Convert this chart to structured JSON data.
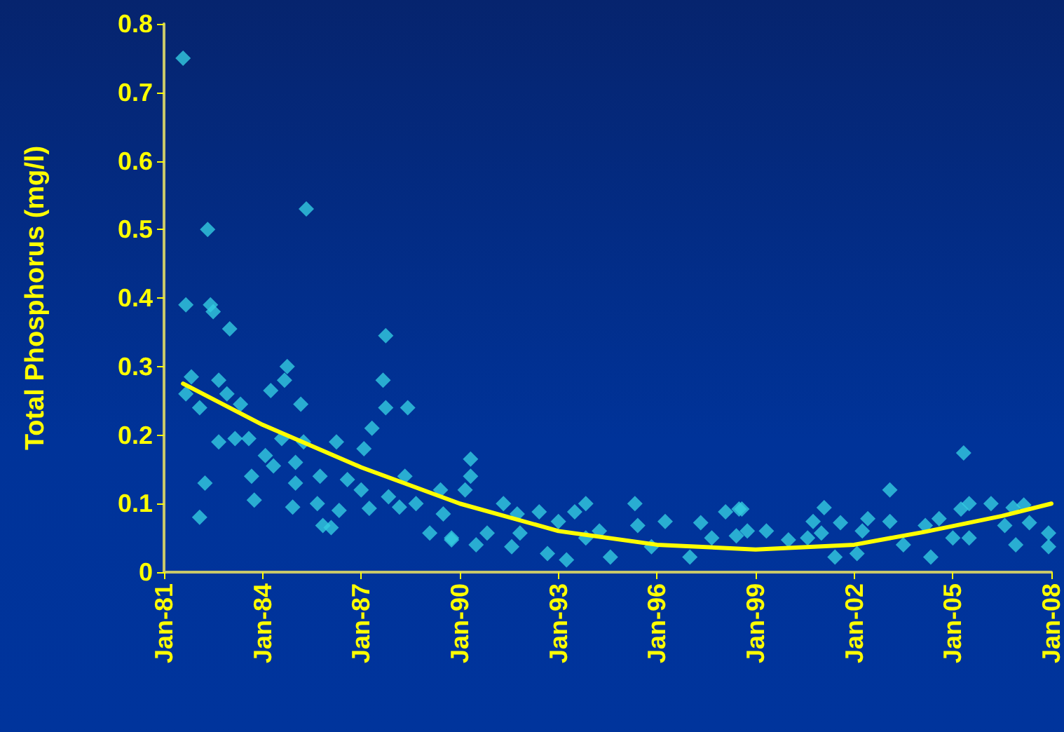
{
  "chart_data": {
    "type": "scatter",
    "ylabel": "Total Phosphorus (mg/l)",
    "grid": false,
    "xlim": [
      "1981-01",
      "2008-01"
    ],
    "xticks": [
      {
        "value": "1981-01",
        "label": "Jan-81"
      },
      {
        "value": "1984-01",
        "label": "Jan-84"
      },
      {
        "value": "1987-01",
        "label": "Jan-87"
      },
      {
        "value": "1990-01",
        "label": "Jan-90"
      },
      {
        "value": "1993-01",
        "label": "Jan-93"
      },
      {
        "value": "1996-01",
        "label": "Jan-96"
      },
      {
        "value": "1999-01",
        "label": "Jan-99"
      },
      {
        "value": "2002-01",
        "label": "Jan-02"
      },
      {
        "value": "2005-01",
        "label": "Jan-05"
      },
      {
        "value": "2008-01",
        "label": "Jan-08"
      }
    ],
    "ylim": [
      0,
      0.8
    ],
    "yticks": [
      0,
      0.1,
      0.2,
      0.3,
      0.4,
      0.5,
      0.6,
      0.7,
      0.8
    ],
    "series": [
      {
        "color": "#33cce0",
        "marker": "diamond",
        "x": [
          "1981-08",
          "1981-09",
          "1981-09",
          "1981-11",
          "1982-02",
          "1982-02",
          "1982-04",
          "1982-05",
          "1982-06",
          "1982-07",
          "1982-09",
          "1982-09",
          "1982-12",
          "1983-01",
          "1983-03",
          "1983-05",
          "1983-08",
          "1983-09",
          "1983-10",
          "1984-02",
          "1984-04",
          "1984-05",
          "1984-08",
          "1984-09",
          "1984-10",
          "1984-12",
          "1985-01",
          "1985-01",
          "1985-03",
          "1985-04",
          "1985-05",
          "1985-09",
          "1985-10",
          "1985-11",
          "1986-02",
          "1986-04",
          "1986-05",
          "1986-08",
          "1987-01",
          "1987-02",
          "1987-04",
          "1987-05",
          "1987-09",
          "1987-10",
          "1987-10",
          "1987-11",
          "1988-03",
          "1988-05",
          "1988-06",
          "1988-09",
          "1989-02",
          "1989-06",
          "1989-07",
          "1989-10",
          "1989-10",
          "1990-03",
          "1990-05",
          "1990-05",
          "1990-07",
          "1990-11",
          "1991-05",
          "1991-08",
          "1991-10",
          "1991-11",
          "1992-06",
          "1992-09",
          "1993-01",
          "1993-04",
          "1993-07",
          "1993-11",
          "1993-11",
          "1994-04",
          "1994-08",
          "1995-05",
          "1995-06",
          "1995-11",
          "1996-04",
          "1997-01",
          "1997-05",
          "1997-09",
          "1998-02",
          "1998-06",
          "1998-07",
          "1998-08",
          "1998-10",
          "1999-05",
          "2000-01",
          "2000-08",
          "2000-10",
          "2001-01",
          "2001-02",
          "2001-06",
          "2001-08",
          "2002-02",
          "2002-04",
          "2002-06",
          "2003-02",
          "2003-02",
          "2003-07",
          "2004-03",
          "2004-05",
          "2004-08",
          "2005-01",
          "2005-04",
          "2005-05",
          "2005-07",
          "2005-07",
          "2006-03",
          "2006-08",
          "2006-11",
          "2006-12",
          "2007-03",
          "2007-05",
          "2007-12",
          "2007-12"
        ],
        "values": [
          0.75,
          0.26,
          0.39,
          0.285,
          0.24,
          0.08,
          0.13,
          0.5,
          0.39,
          0.38,
          0.28,
          0.19,
          0.26,
          0.355,
          0.195,
          0.245,
          0.195,
          0.14,
          0.105,
          0.17,
          0.265,
          0.155,
          0.195,
          0.28,
          0.3,
          0.095,
          0.13,
          0.16,
          0.245,
          0.19,
          0.53,
          0.1,
          0.14,
          0.068,
          0.065,
          0.19,
          0.09,
          0.135,
          0.12,
          0.18,
          0.093,
          0.21,
          0.28,
          0.345,
          0.24,
          0.11,
          0.095,
          0.14,
          0.24,
          0.1,
          0.057,
          0.12,
          0.085,
          0.047,
          0.05,
          0.12,
          0.165,
          0.14,
          0.04,
          0.057,
          0.1,
          0.037,
          0.085,
          0.057,
          0.088,
          0.027,
          0.074,
          0.018,
          0.088,
          0.1,
          0.05,
          0.06,
          0.022,
          0.1,
          0.068,
          0.037,
          0.074,
          0.022,
          0.072,
          0.05,
          0.088,
          0.053,
          0.092,
          0.092,
          0.06,
          0.06,
          0.047,
          0.05,
          0.074,
          0.057,
          0.094,
          0.022,
          0.072,
          0.027,
          0.06,
          0.078,
          0.12,
          0.074,
          0.04,
          0.068,
          0.022,
          0.078,
          0.05,
          0.092,
          0.174,
          0.1,
          0.05,
          0.1,
          0.068,
          0.094,
          0.04,
          0.098,
          0.072,
          0.057,
          0.037
        ]
      },
      {
        "type": "line",
        "marker": "none",
        "color": "#ffff00",
        "x": [
          "1981-08",
          "1984-01",
          "1987-01",
          "1990-01",
          "1993-01",
          "1996-01",
          "1999-01",
          "2002-01",
          "2004-03",
          "2006-07",
          "2008-01"
        ],
        "values": [
          0.275,
          0.215,
          0.153,
          0.1,
          0.06,
          0.04,
          0.033,
          0.04,
          0.059,
          0.082,
          0.1
        ]
      }
    ]
  }
}
